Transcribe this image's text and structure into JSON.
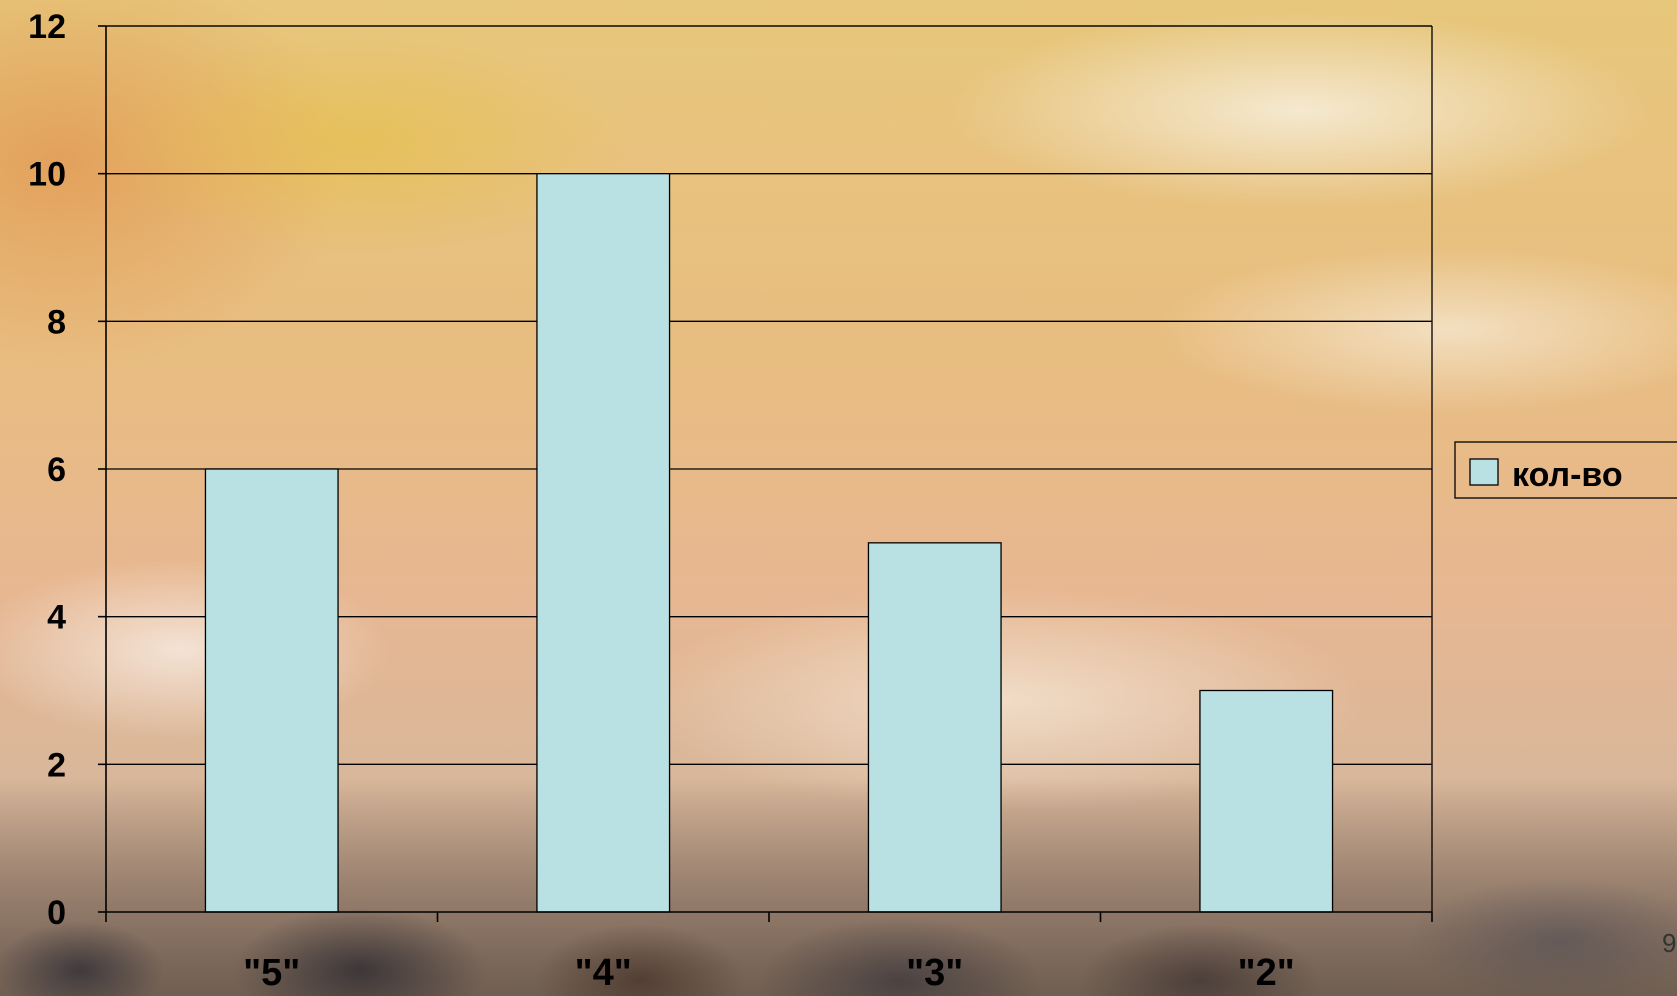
{
  "chart_data": {
    "type": "bar",
    "categories": [
      "\"5\"",
      "\"4\"",
      "\"3\"",
      "\"2\""
    ],
    "series": [
      {
        "name": "кол-во",
        "values": [
          6,
          10,
          5,
          3
        ],
        "color": "#b9e0e3"
      }
    ],
    "ylim": [
      0,
      12
    ],
    "yticks": [
      0,
      2,
      4,
      6,
      8,
      10,
      12
    ],
    "grid": true,
    "legend_position": "right"
  },
  "page_number": "9"
}
